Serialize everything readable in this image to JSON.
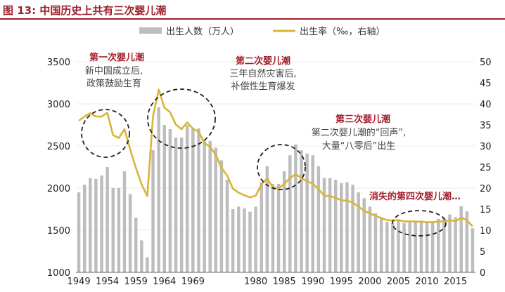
{
  "figure": {
    "title": "图 13: 中国历史上共有三次婴儿潮"
  },
  "chart_data": {
    "type": "bar+line",
    "title": "",
    "years": [
      1949,
      1950,
      1951,
      1952,
      1953,
      1954,
      1955,
      1956,
      1957,
      1958,
      1959,
      1960,
      1961,
      1962,
      1963,
      1964,
      1965,
      1966,
      1967,
      1968,
      1969,
      1970,
      1971,
      1972,
      1973,
      1974,
      1975,
      1976,
      1977,
      1978,
      1979,
      1980,
      1981,
      1982,
      1983,
      1984,
      1985,
      1986,
      1987,
      1988,
      1989,
      1990,
      1991,
      1992,
      1993,
      1994,
      1995,
      1996,
      1997,
      1998,
      1999,
      2000,
      2001,
      2002,
      2003,
      2004,
      2005,
      2006,
      2007,
      2008,
      2009,
      2010,
      2011,
      2012,
      2013,
      2014,
      2015,
      2016,
      2017,
      2018
    ],
    "x_tick_labels": [
      "1949",
      "1954",
      "1959",
      "1964",
      "1969",
      "1980",
      "1985",
      "1990",
      "1995",
      "2000",
      "2005",
      "2010",
      "2015"
    ],
    "x_tick_years": [
      1949,
      1954,
      1959,
      1964,
      1969,
      1980,
      1985,
      1990,
      1995,
      2000,
      2005,
      2010,
      2015
    ],
    "y_left": {
      "ticks": [
        1000,
        1500,
        2000,
        2500,
        3000,
        3500
      ],
      "range": [
        1000,
        3500
      ]
    },
    "y_right": {
      "ticks": [
        0,
        5,
        10,
        15,
        20,
        25,
        30,
        35,
        40,
        45,
        50
      ],
      "range": [
        0,
        50
      ]
    },
    "series": [
      {
        "name": "出生人数（万人）",
        "axis": "left",
        "kind": "bar",
        "color": "#bdbdbd",
        "values": [
          1950,
          2040,
          2120,
          2110,
          2150,
          2250,
          2000,
          2000,
          2200,
          1930,
          1650,
          1380,
          1180,
          2450,
          2960,
          2750,
          2700,
          2600,
          2600,
          2750,
          2700,
          2710,
          2560,
          2560,
          2480,
          2330,
          2100,
          1750,
          1780,
          1760,
          1720,
          1780,
          2070,
          2260,
          2050,
          2050,
          2200,
          2390,
          2520,
          2450,
          2410,
          2390,
          2260,
          2120,
          2120,
          2100,
          2060,
          2070,
          2040,
          1950,
          1880,
          1780,
          1700,
          1650,
          1600,
          1590,
          1617,
          1585,
          1594,
          1608,
          1615,
          1592,
          1604,
          1635,
          1640,
          1687,
          1655,
          1786,
          1723,
          1523
        ]
      },
      {
        "name": "出生率（‰，右轴）",
        "axis": "right",
        "kind": "line",
        "color": "#d8b536",
        "values": [
          36,
          37,
          37.8,
          37,
          37,
          37.9,
          32.6,
          31.9,
          34,
          29.2,
          24.8,
          20.9,
          18.1,
          37,
          43.4,
          39.1,
          38,
          35.1,
          34,
          35.6,
          34.1,
          33.4,
          30.7,
          29.8,
          27.9,
          24.8,
          23,
          19.9,
          18.9,
          18.3,
          17.8,
          18.2,
          20.9,
          22.3,
          20.2,
          19.9,
          21,
          22.4,
          23.3,
          22.4,
          21.6,
          21.1,
          19.7,
          18.2,
          18.1,
          17.7,
          17.1,
          17,
          16.6,
          15.6,
          14.6,
          14,
          13.4,
          12.9,
          12.4,
          12.3,
          12.4,
          12.1,
          12.1,
          12.1,
          12,
          11.9,
          11.9,
          12.1,
          12.1,
          12.4,
          12.1,
          13,
          12.4,
          10.9
        ]
      }
    ],
    "annotations": [
      {
        "title": "第一次婴儿潮",
        "lines": [
          "新中国成立后,",
          "政策鼓励生育"
        ]
      },
      {
        "title": "第二次婴儿潮",
        "lines": [
          "三年自然灾害后,",
          "补偿性生育爆发"
        ]
      },
      {
        "title": "第三次婴儿潮",
        "lines": [
          "第二次婴儿潮的“回声”,",
          "大量“八零后”出生"
        ]
      },
      {
        "title": "消失的第四次婴儿潮…",
        "lines": []
      }
    ],
    "legend_placement": "top-center"
  },
  "colors": {
    "title": "#9e1f2b",
    "bar": "#bdbdbd",
    "line": "#d8b536",
    "annotation": "#a3202c"
  }
}
